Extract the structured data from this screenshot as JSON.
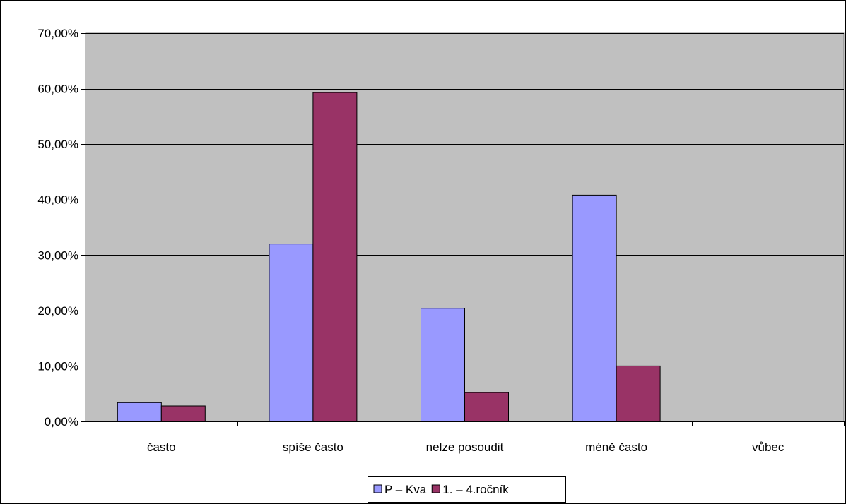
{
  "chart_data": {
    "type": "bar",
    "categories": [
      "často",
      "spíše často",
      "nelze posoudit",
      "méně často",
      "vůbec"
    ],
    "series": [
      {
        "name": "P – Kva",
        "values": [
          3.4,
          32.0,
          20.4,
          40.8,
          0.0
        ],
        "color": "#9999ff"
      },
      {
        "name": "1. – 4.ročník",
        "values": [
          2.8,
          59.3,
          5.2,
          10.0,
          0.0
        ],
        "color": "#993366"
      }
    ],
    "title": "",
    "xlabel": "",
    "ylabel": "",
    "ylim": [
      0,
      70
    ],
    "yticks": [
      0,
      10,
      20,
      30,
      40,
      50,
      60,
      70
    ],
    "ytick_labels": [
      "0,00%",
      "10,00%",
      "20,00%",
      "30,00%",
      "40,00%",
      "50,00%",
      "60,00%",
      "70,00%"
    ],
    "grid": true,
    "plot_background": "#c0c0c0",
    "legend_position": "bottom"
  }
}
